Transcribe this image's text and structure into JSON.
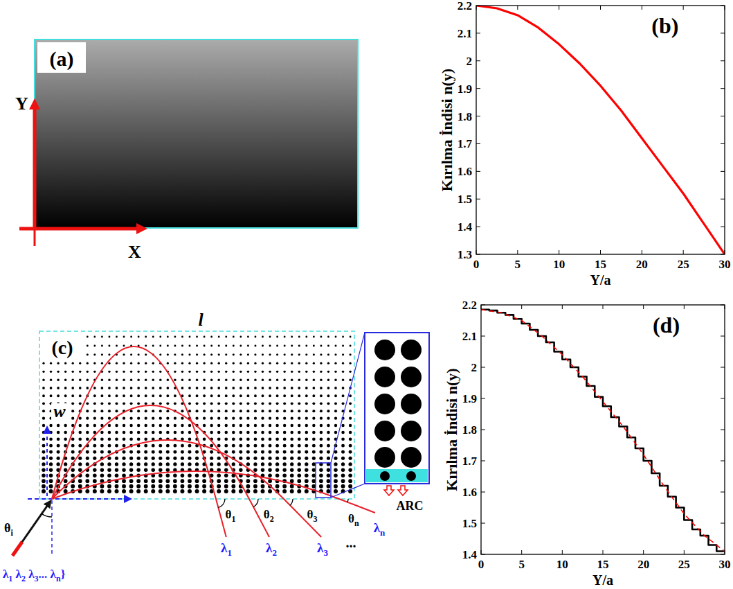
{
  "chart_data": [
    {
      "type": "line",
      "title": "(b)",
      "x_label": "Y/a",
      "y_label": "Kırılma İndisi n(y)",
      "x": [
        0,
        2.5,
        5,
        7.5,
        10,
        12.5,
        15,
        17.5,
        20,
        22.5,
        25,
        27.5,
        30
      ],
      "series": [
        {
          "color": "#ff0000",
          "line_style": "solid",
          "values": [
            2.2,
            2.19,
            2.165,
            2.12,
            2.06,
            1.99,
            1.91,
            1.82,
            1.72,
            1.62,
            1.52,
            1.41,
            1.3
          ]
        }
      ],
      "xlim": [
        0,
        30
      ],
      "xticks": [
        0,
        5,
        10,
        15,
        20,
        25,
        30
      ],
      "ylim": [
        1.3,
        2.2
      ],
      "yticks": [
        1.3,
        1.4,
        1.5,
        1.6,
        1.7,
        1.8,
        1.9,
        2,
        2.1,
        2.2
      ],
      "grid": false
    },
    {
      "type": "line",
      "title": "(d)",
      "x_label": "Y/a",
      "y_label": "Kırılma İndisi n(y)",
      "series": [
        {
          "type": "step",
          "color": "#000000",
          "line_style": "solid",
          "x": [
            0,
            1,
            2,
            3,
            4,
            5,
            6,
            7,
            8,
            9,
            10,
            11,
            12,
            13,
            14,
            15,
            16,
            17,
            18,
            19,
            20,
            21,
            22,
            23,
            24,
            25,
            26,
            27,
            28,
            29,
            30
          ],
          "values": [
            2.185,
            2.182,
            2.175,
            2.168,
            2.155,
            2.14,
            2.12,
            2.1,
            2.08,
            2.05,
            2.025,
            2.0,
            1.97,
            1.94,
            1.905,
            1.875,
            1.84,
            1.81,
            1.775,
            1.74,
            1.7,
            1.66,
            1.62,
            1.585,
            1.55,
            1.51,
            1.48,
            1.46,
            1.43,
            1.41,
            1.41
          ]
        },
        {
          "type": "line",
          "color": "#ff0000",
          "line_style": "dashed",
          "x": [
            0,
            2.5,
            5,
            7.5,
            10,
            12.5,
            15,
            17.5,
            20,
            22.5,
            25,
            27.5,
            30
          ],
          "values": [
            2.185,
            2.175,
            2.15,
            2.1,
            2.04,
            1.97,
            1.89,
            1.81,
            1.72,
            1.62,
            1.53,
            1.46,
            1.41
          ]
        }
      ],
      "xlim": [
        0,
        30
      ],
      "xticks": [
        0,
        5,
        10,
        15,
        20,
        25,
        30
      ],
      "ylim": [
        1.4,
        2.2
      ],
      "yticks": [
        1.4,
        1.5,
        1.6,
        1.7,
        1.8,
        1.9,
        2,
        2.1,
        2.2
      ],
      "grid": false
    }
  ],
  "diagrams": {
    "a": {
      "label": "(a)",
      "x_axis": "X",
      "y_axis": "Y"
    },
    "c": {
      "label": "(c)",
      "length_label": "l",
      "width_label": "w",
      "incident": {
        "text": "θ",
        "sub": "i"
      },
      "inputs": [
        {
          "text": "λ",
          "sub": "1"
        },
        {
          "text": " λ",
          "sub": "2"
        },
        {
          "text": " λ",
          "sub": "3"
        },
        {
          "text": "... λ",
          "sub": "n"
        },
        {
          "text": "}"
        }
      ],
      "outputs": [
        {
          "wavelength": {
            "text": "λ",
            "sub": "1"
          },
          "angle": {
            "text": "θ",
            "sub": "1"
          }
        },
        {
          "wavelength": {
            "text": "λ",
            "sub": "2"
          },
          "angle": {
            "text": "θ",
            "sub": "2"
          }
        },
        {
          "wavelength": {
            "text": "λ",
            "sub": "3"
          },
          "angle": {
            "text": "θ",
            "sub": "3"
          }
        },
        {
          "wavelength": {
            "text": "λ",
            "sub": "n"
          },
          "angle": {
            "text": "θ",
            "sub": "n"
          }
        }
      ],
      "ellipsis": "...",
      "inset_label": "ARC"
    }
  }
}
